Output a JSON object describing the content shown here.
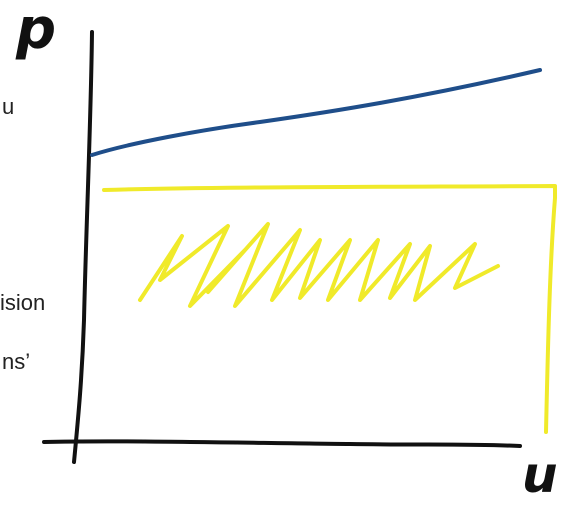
{
  "figure": {
    "y_axis_label": "p",
    "x_axis_label": "u",
    "clipped_text": [
      "u",
      "ision",
      "ns’"
    ]
  },
  "colors": {
    "axes": "#111111",
    "blue_line": "#1f4e8a",
    "yellow_region": "#f0ea2a",
    "text": "#222222"
  }
}
